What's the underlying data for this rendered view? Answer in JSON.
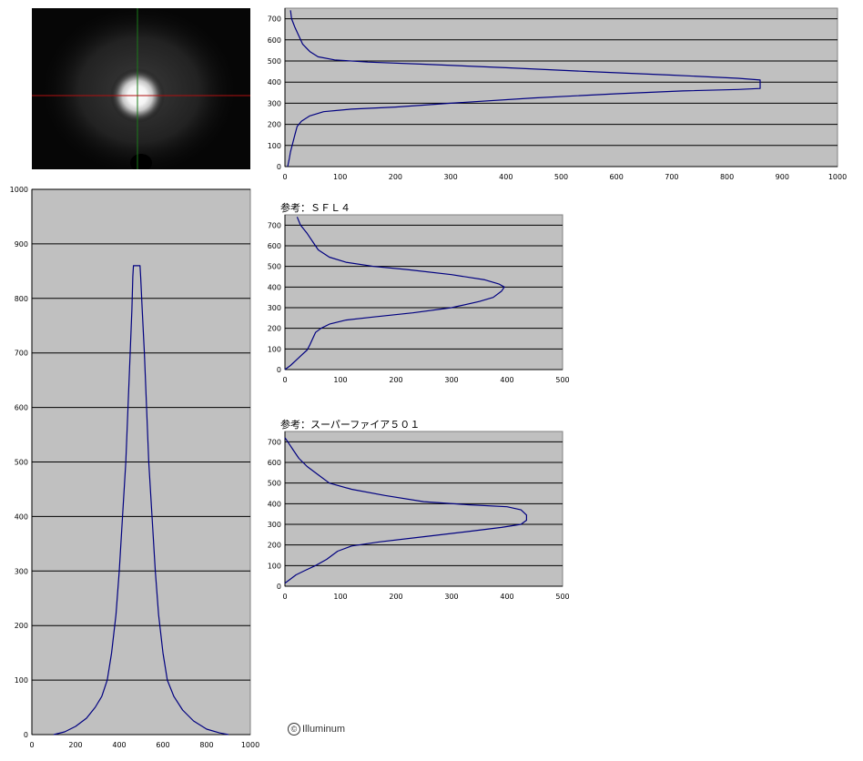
{
  "colors": {
    "plot_background": "#c0c0c0",
    "gridline": "#000000",
    "series_line": "#000080",
    "crosshair_vertical": "#1a7a1a",
    "crosshair_horizontal": "#b01010"
  },
  "copyright": {
    "symbol": "©",
    "text": "Illuminum"
  },
  "beam_image": {
    "description_icon": "beam-spot-image"
  },
  "chart_data": [
    {
      "id": "main-vertical-profile",
      "type": "line",
      "title": "",
      "xlabel": "",
      "ylabel": "",
      "xlim": [
        0,
        1000
      ],
      "ylim": [
        0,
        750
      ],
      "x_ticks": [
        0,
        100,
        200,
        300,
        400,
        500,
        600,
        700,
        800,
        900,
        1000
      ],
      "y_ticks": [
        0,
        100,
        200,
        300,
        400,
        500,
        600,
        700
      ],
      "grid": "horizontal",
      "orientation": "horizontal-intensity",
      "series": [
        {
          "points": [
            [
              5,
              0
            ],
            [
              8,
              40
            ],
            [
              10,
              70
            ],
            [
              14,
              110
            ],
            [
              18,
              150
            ],
            [
              22,
              190
            ],
            [
              30,
              215
            ],
            [
              45,
              240
            ],
            [
              70,
              260
            ],
            [
              120,
              272
            ],
            [
              200,
              282
            ],
            [
              300,
              300
            ],
            [
              450,
              325
            ],
            [
              600,
              345
            ],
            [
              720,
              358
            ],
            [
              820,
              365
            ],
            [
              860,
              370
            ],
            [
              860,
              410
            ],
            [
              820,
              418
            ],
            [
              700,
              433
            ],
            [
              550,
              450
            ],
            [
              400,
              468
            ],
            [
              250,
              485
            ],
            [
              150,
              495
            ],
            [
              90,
              505
            ],
            [
              60,
              520
            ],
            [
              45,
              545
            ],
            [
              32,
              580
            ],
            [
              25,
              620
            ],
            [
              18,
              660
            ],
            [
              12,
              700
            ],
            [
              10,
              740
            ]
          ]
        }
      ]
    },
    {
      "id": "sfl4-profile",
      "type": "line",
      "title": "参考：ＳＦＬ４",
      "xlim": [
        0,
        500
      ],
      "ylim": [
        0,
        750
      ],
      "x_ticks": [
        0,
        100,
        200,
        300,
        400,
        500
      ],
      "y_ticks": [
        0,
        100,
        200,
        300,
        400,
        500,
        600,
        700
      ],
      "grid": "horizontal",
      "orientation": "horizontal-intensity",
      "series": [
        {
          "points": [
            [
              0,
              0
            ],
            [
              10,
              20
            ],
            [
              20,
              45
            ],
            [
              30,
              70
            ],
            [
              40,
              95
            ],
            [
              45,
              120
            ],
            [
              50,
              150
            ],
            [
              55,
              180
            ],
            [
              65,
              200
            ],
            [
              80,
              220
            ],
            [
              110,
              240
            ],
            [
              160,
              255
            ],
            [
              230,
              275
            ],
            [
              300,
              300
            ],
            [
              350,
              330
            ],
            [
              375,
              350
            ],
            [
              390,
              380
            ],
            [
              395,
              400
            ],
            [
              385,
              415
            ],
            [
              360,
              435
            ],
            [
              300,
              460
            ],
            [
              220,
              485
            ],
            [
              160,
              500
            ],
            [
              110,
              520
            ],
            [
              80,
              545
            ],
            [
              60,
              580
            ],
            [
              50,
              620
            ],
            [
              40,
              660
            ],
            [
              28,
              700
            ],
            [
              22,
              740
            ]
          ]
        }
      ]
    },
    {
      "id": "superfire501-profile",
      "type": "line",
      "title": "参考：スーパーファイア５０１",
      "xlim": [
        0,
        500
      ],
      "ylim": [
        0,
        750
      ],
      "x_ticks": [
        0,
        100,
        200,
        300,
        400,
        500
      ],
      "y_ticks": [
        0,
        100,
        200,
        300,
        400,
        500,
        600,
        700
      ],
      "grid": "horizontal",
      "orientation": "horizontal-intensity",
      "series": [
        {
          "points": [
            [
              0,
              15
            ],
            [
              10,
              35
            ],
            [
              20,
              55
            ],
            [
              35,
              75
            ],
            [
              55,
              100
            ],
            [
              75,
              130
            ],
            [
              95,
              170
            ],
            [
              120,
              195
            ],
            [
              170,
              215
            ],
            [
              250,
              240
            ],
            [
              330,
              265
            ],
            [
              390,
              285
            ],
            [
              425,
              300
            ],
            [
              435,
              320
            ],
            [
              435,
              345
            ],
            [
              425,
              370
            ],
            [
              400,
              385
            ],
            [
              330,
              395
            ],
            [
              250,
              410
            ],
            [
              180,
              440
            ],
            [
              120,
              470
            ],
            [
              80,
              500
            ],
            [
              60,
              540
            ],
            [
              40,
              580
            ],
            [
              25,
              620
            ],
            [
              15,
              660
            ],
            [
              5,
              700
            ],
            [
              0,
              720
            ]
          ]
        }
      ]
    },
    {
      "id": "horizontal-profile",
      "type": "line",
      "title": "",
      "xlim": [
        0,
        1000
      ],
      "ylim": [
        0,
        1000
      ],
      "x_ticks": [
        0,
        200,
        400,
        600,
        800,
        1000
      ],
      "y_ticks": [
        0,
        100,
        200,
        300,
        400,
        500,
        600,
        700,
        800,
        900,
        1000
      ],
      "grid": "horizontal",
      "orientation": "vertical-intensity",
      "series": [
        {
          "points": [
            [
              100,
              0
            ],
            [
              150,
              5
            ],
            [
              200,
              15
            ],
            [
              250,
              30
            ],
            [
              290,
              50
            ],
            [
              320,
              70
            ],
            [
              345,
              100
            ],
            [
              365,
              150
            ],
            [
              385,
              220
            ],
            [
              400,
              300
            ],
            [
              415,
              400
            ],
            [
              430,
              500
            ],
            [
              440,
              600
            ],
            [
              450,
              700
            ],
            [
              458,
              780
            ],
            [
              462,
              840
            ],
            [
              465,
              860
            ],
            [
              495,
              860
            ],
            [
              498,
              840
            ],
            [
              505,
              780
            ],
            [
              515,
              700
            ],
            [
              525,
              600
            ],
            [
              535,
              500
            ],
            [
              550,
              400
            ],
            [
              565,
              300
            ],
            [
              580,
              220
            ],
            [
              600,
              150
            ],
            [
              620,
              100
            ],
            [
              650,
              70
            ],
            [
              690,
              45
            ],
            [
              740,
              25
            ],
            [
              800,
              10
            ],
            [
              860,
              3
            ],
            [
              900,
              0
            ]
          ]
        }
      ]
    }
  ]
}
